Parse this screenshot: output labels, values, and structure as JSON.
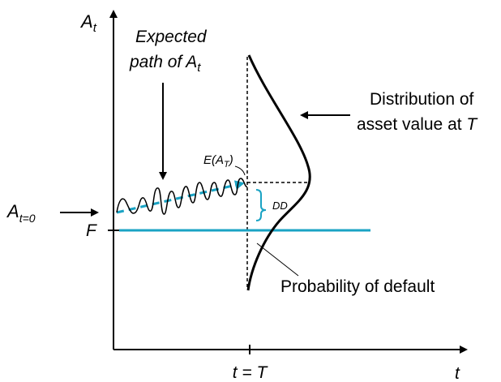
{
  "axes": {
    "y_label": "A",
    "y_label_sub": "t",
    "x_label": "t",
    "x_tick_label": "t = T"
  },
  "labels": {
    "expected_path_line1": "Expected",
    "expected_path_line2": "path of A",
    "expected_path_sub": "t",
    "distribution_line1": "Distribution of",
    "distribution_line2": "asset value at T",
    "expected_value": "E(A",
    "expected_value_sub": "T",
    "expected_value_close": ")",
    "dd": "DD",
    "a0": "A",
    "a0_sub": "t=0",
    "f": "F",
    "probability_default": "Probability of default"
  },
  "colors": {
    "accent": "#1aa3c4",
    "ink": "#000000"
  }
}
